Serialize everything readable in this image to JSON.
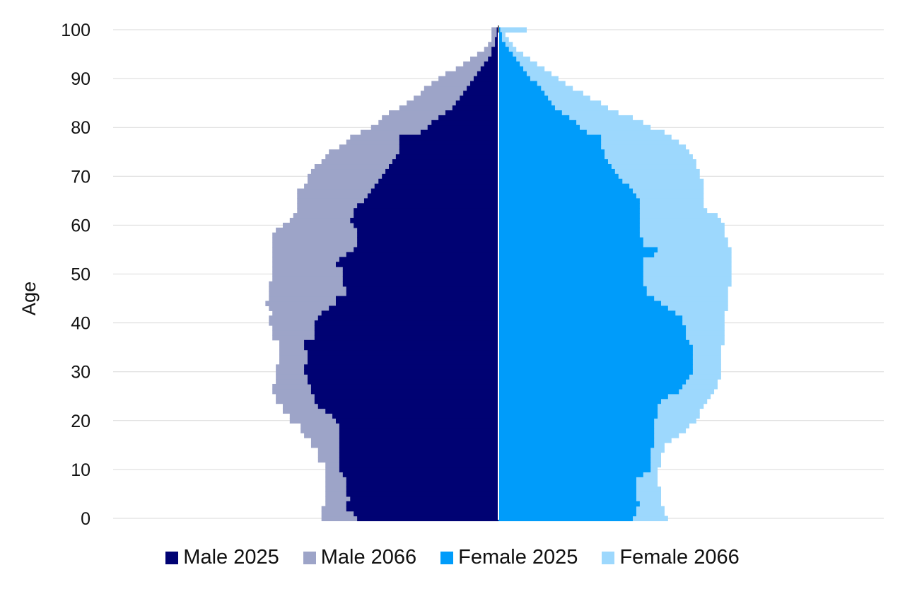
{
  "chart_data": {
    "type": "bar",
    "orientation": "horizontal-population-pyramid",
    "title": "",
    "xlabel": "",
    "ylabel": "Age",
    "ylim": [
      0,
      100
    ],
    "yticks": [
      "0",
      "10",
      "20",
      "30",
      "40",
      "50",
      "60",
      "70",
      "80",
      "90",
      "100"
    ],
    "grid": true,
    "legend_position": "bottom",
    "ages": [
      0,
      1,
      2,
      3,
      4,
      5,
      6,
      7,
      8,
      9,
      10,
      11,
      12,
      13,
      14,
      15,
      16,
      17,
      18,
      19,
      20,
      21,
      22,
      23,
      24,
      25,
      26,
      27,
      28,
      29,
      30,
      31,
      32,
      33,
      34,
      35,
      36,
      37,
      38,
      39,
      40,
      41,
      42,
      43,
      44,
      45,
      46,
      47,
      48,
      49,
      50,
      51,
      52,
      53,
      54,
      55,
      56,
      57,
      58,
      59,
      60,
      61,
      62,
      63,
      64,
      65,
      66,
      67,
      68,
      69,
      70,
      71,
      72,
      73,
      74,
      75,
      76,
      77,
      78,
      79,
      80,
      81,
      82,
      83,
      84,
      85,
      86,
      87,
      88,
      89,
      90,
      91,
      92,
      93,
      94,
      95,
      96,
      97,
      98,
      99,
      100
    ],
    "series": [
      {
        "name": "Male 2025",
        "side": "left",
        "color": "#000273",
        "values": [
          0.325,
          0.333,
          0.35,
          0.35,
          0.341,
          0.35,
          0.35,
          0.35,
          0.35,
          0.358,
          0.366,
          0.366,
          0.366,
          0.366,
          0.366,
          0.366,
          0.366,
          0.366,
          0.366,
          0.366,
          0.374,
          0.382,
          0.398,
          0.415,
          0.423,
          0.423,
          0.431,
          0.431,
          0.439,
          0.439,
          0.447,
          0.447,
          0.439,
          0.439,
          0.439,
          0.447,
          0.447,
          0.423,
          0.423,
          0.423,
          0.423,
          0.415,
          0.407,
          0.39,
          0.374,
          0.374,
          0.35,
          0.35,
          0.358,
          0.358,
          0.358,
          0.358,
          0.374,
          0.366,
          0.35,
          0.333,
          0.325,
          0.325,
          0.325,
          0.325,
          0.333,
          0.341,
          0.333,
          0.333,
          0.325,
          0.309,
          0.301,
          0.293,
          0.285,
          0.276,
          0.268,
          0.26,
          0.252,
          0.244,
          0.236,
          0.228,
          0.228,
          0.228,
          0.228,
          0.179,
          0.163,
          0.154,
          0.138,
          0.122,
          0.106,
          0.098,
          0.089,
          0.081,
          0.073,
          0.065,
          0.057,
          0.049,
          0.041,
          0.033,
          0.024,
          0.016,
          0.016,
          0.008,
          0.008,
          0.004,
          0.004
        ]
      },
      {
        "name": "Male 2066",
        "side": "left",
        "color": "#9DA4C8",
        "values": [
          0.407,
          0.407,
          0.407,
          0.398,
          0.398,
          0.398,
          0.398,
          0.398,
          0.398,
          0.398,
          0.398,
          0.398,
          0.415,
          0.415,
          0.415,
          0.431,
          0.431,
          0.447,
          0.455,
          0.455,
          0.48,
          0.48,
          0.496,
          0.496,
          0.512,
          0.512,
          0.52,
          0.52,
          0.512,
          0.512,
          0.512,
          0.512,
          0.504,
          0.504,
          0.504,
          0.504,
          0.504,
          0.52,
          0.52,
          0.52,
          0.528,
          0.528,
          0.52,
          0.528,
          0.536,
          0.528,
          0.528,
          0.528,
          0.528,
          0.52,
          0.52,
          0.52,
          0.52,
          0.52,
          0.52,
          0.52,
          0.52,
          0.52,
          0.52,
          0.512,
          0.496,
          0.48,
          0.472,
          0.463,
          0.463,
          0.463,
          0.463,
          0.463,
          0.447,
          0.439,
          0.439,
          0.431,
          0.423,
          0.407,
          0.398,
          0.39,
          0.366,
          0.35,
          0.341,
          0.317,
          0.293,
          0.276,
          0.268,
          0.252,
          0.228,
          0.211,
          0.195,
          0.179,
          0.171,
          0.154,
          0.138,
          0.122,
          0.098,
          0.081,
          0.065,
          0.049,
          0.033,
          0.024,
          0.016,
          0.016,
          0.016
        ]
      },
      {
        "name": "Female 2025",
        "side": "right",
        "color": "#009CFA",
        "values": [
          0.309,
          0.317,
          0.317,
          0.325,
          0.317,
          0.317,
          0.317,
          0.317,
          0.317,
          0.333,
          0.35,
          0.35,
          0.35,
          0.35,
          0.35,
          0.358,
          0.358,
          0.358,
          0.358,
          0.358,
          0.358,
          0.366,
          0.366,
          0.366,
          0.374,
          0.39,
          0.415,
          0.423,
          0.431,
          0.439,
          0.447,
          0.447,
          0.447,
          0.447,
          0.447,
          0.447,
          0.439,
          0.431,
          0.431,
          0.431,
          0.423,
          0.423,
          0.407,
          0.39,
          0.374,
          0.358,
          0.341,
          0.341,
          0.333,
          0.333,
          0.333,
          0.333,
          0.333,
          0.333,
          0.358,
          0.366,
          0.333,
          0.333,
          0.325,
          0.325,
          0.325,
          0.325,
          0.325,
          0.325,
          0.325,
          0.325,
          0.317,
          0.309,
          0.301,
          0.285,
          0.276,
          0.268,
          0.26,
          0.252,
          0.244,
          0.244,
          0.236,
          0.236,
          0.236,
          0.203,
          0.187,
          0.179,
          0.163,
          0.146,
          0.13,
          0.122,
          0.114,
          0.106,
          0.098,
          0.089,
          0.073,
          0.065,
          0.057,
          0.049,
          0.041,
          0.033,
          0.024,
          0.016,
          0.008,
          0.008,
          0.004
        ]
      },
      {
        "name": "Female 2066",
        "side": "right",
        "color": "#9DD8FD",
        "values": [
          0.39,
          0.382,
          0.382,
          0.374,
          0.374,
          0.374,
          0.374,
          0.366,
          0.366,
          0.366,
          0.366,
          0.374,
          0.374,
          0.374,
          0.382,
          0.382,
          0.398,
          0.415,
          0.431,
          0.439,
          0.455,
          0.463,
          0.463,
          0.472,
          0.48,
          0.488,
          0.496,
          0.504,
          0.504,
          0.512,
          0.512,
          0.512,
          0.512,
          0.512,
          0.512,
          0.512,
          0.52,
          0.52,
          0.52,
          0.52,
          0.52,
          0.52,
          0.52,
          0.528,
          0.528,
          0.528,
          0.528,
          0.528,
          0.536,
          0.536,
          0.536,
          0.536,
          0.536,
          0.536,
          0.536,
          0.536,
          0.528,
          0.528,
          0.52,
          0.52,
          0.52,
          0.512,
          0.504,
          0.48,
          0.472,
          0.472,
          0.472,
          0.472,
          0.472,
          0.472,
          0.463,
          0.463,
          0.455,
          0.455,
          0.447,
          0.439,
          0.431,
          0.415,
          0.398,
          0.382,
          0.35,
          0.333,
          0.309,
          0.276,
          0.252,
          0.236,
          0.211,
          0.195,
          0.171,
          0.154,
          0.138,
          0.122,
          0.106,
          0.089,
          0.073,
          0.057,
          0.041,
          0.033,
          0.024,
          0.016,
          0.065
        ]
      }
    ]
  }
}
